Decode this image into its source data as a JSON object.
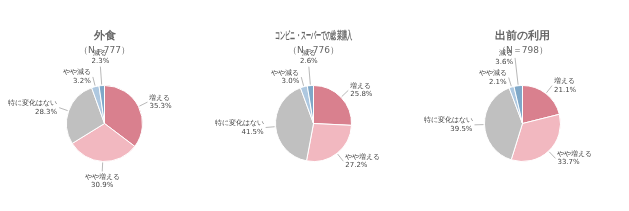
{
  "chart_data": [
    {
      "type": "pie",
      "title": "外食",
      "subtitle": "（N＝777）",
      "categories": [
        "増える",
        "やや増える",
        "特に変化はない",
        "やや減る",
        "減る"
      ],
      "values": [
        35.3,
        30.9,
        28.3,
        3.2,
        2.3
      ],
      "value_labels": [
        "35.3%",
        "30.9%",
        "28.3%",
        "3.2%",
        "2.3%"
      ],
      "colors": [
        "#d9808e",
        "#f2b8c0",
        "#c0c0c0",
        "#aec8e0",
        "#7fa8c8"
      ],
      "data_labels": true
    },
    {
      "type": "pie",
      "title": "コンビニ・スーパーでの総菜購入",
      "subtitle": "（N＝776）",
      "categories": [
        "増える",
        "やや増える",
        "特に変化はない",
        "やや減る",
        "減る"
      ],
      "values": [
        25.8,
        27.2,
        41.5,
        3.0,
        2.6
      ],
      "value_labels": [
        "25.8%",
        "27.2%",
        "41.5%",
        "3.0%",
        "2.6%"
      ],
      "colors": [
        "#d9808e",
        "#f2b8c0",
        "#c0c0c0",
        "#aec8e0",
        "#7fa8c8"
      ],
      "data_labels": true
    },
    {
      "type": "pie",
      "title": "出前の利用",
      "subtitle": "（N＝798）",
      "categories": [
        "増える",
        "やや増える",
        "特に変化はない",
        "やや減る",
        "減る"
      ],
      "values": [
        21.1,
        33.7,
        39.5,
        2.1,
        3.6
      ],
      "value_labels": [
        "21.1%",
        "33.7%",
        "39.5%",
        "2.1%",
        "3.6%"
      ],
      "colors": [
        "#d9808e",
        "#f2b8c0",
        "#c0c0c0",
        "#aec8e0",
        "#7fa8c8"
      ],
      "data_labels": true
    }
  ]
}
